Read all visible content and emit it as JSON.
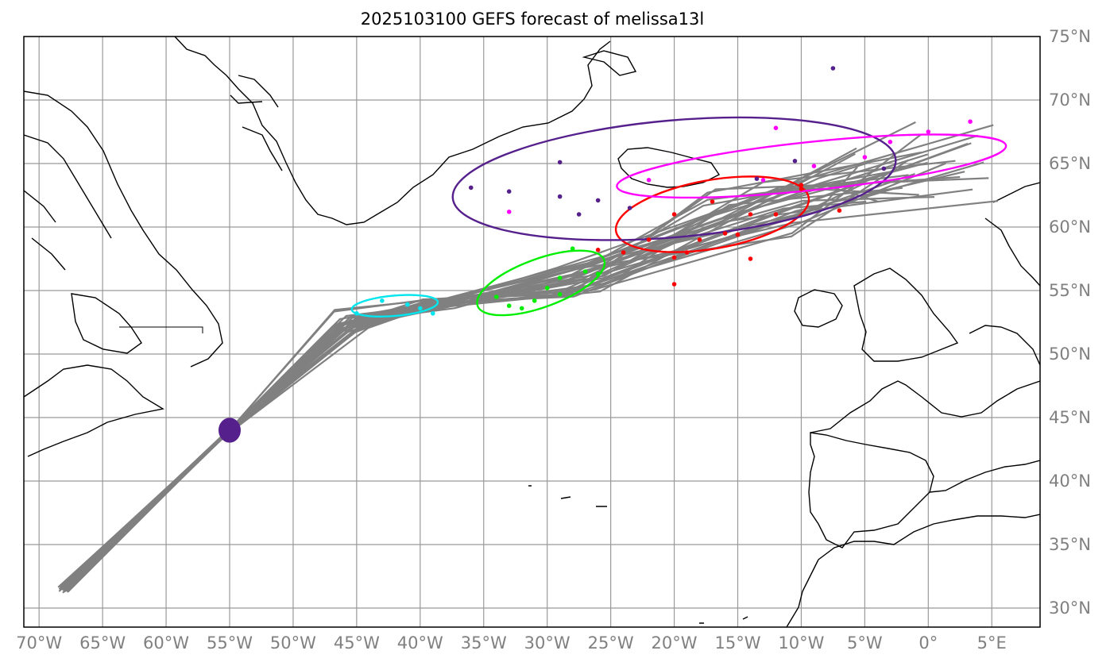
{
  "title": "2025103100 GEFS forecast of melissa13l",
  "axes": {
    "lon_ticks": [
      "70°W",
      "65°W",
      "60°W",
      "55°W",
      "50°W",
      "45°W",
      "40°W",
      "35°W",
      "30°W",
      "25°W",
      "20°W",
      "15°W",
      "10°W",
      "5°W",
      "0°",
      "5°E"
    ],
    "lat_ticks": [
      "75°N",
      "70°N",
      "65°N",
      "60°N",
      "55°N",
      "50°N",
      "45°N",
      "40°N",
      "35°N",
      "30°N"
    ],
    "lon_values": [
      -70,
      -65,
      -60,
      -55,
      -50,
      -45,
      -40,
      -35,
      -30,
      -25,
      -20,
      -15,
      -10,
      -5,
      0,
      5
    ],
    "lat_values": [
      75,
      70,
      65,
      60,
      55,
      50,
      45,
      40,
      35,
      30
    ],
    "lon_range": [
      -71.2,
      8.8
    ],
    "lat_range": [
      28.5,
      75.0
    ],
    "grid": true,
    "colors": {
      "grid": "#999999",
      "track": "#808080",
      "coast": "#000000",
      "tick_label": "#808080"
    }
  },
  "chart_data": {
    "type": "map-tracks",
    "ellipses": [
      {
        "color": "#55208c",
        "center": [
          -55.0,
          44.0
        ],
        "rx": 0.8,
        "ry": 0.9,
        "angle": 0,
        "fill": true
      },
      {
        "color": "#00e5ee",
        "center": [
          -42.0,
          53.8
        ],
        "rx": 3.4,
        "ry": 0.8,
        "angle": 5
      },
      {
        "color": "#00ee00",
        "center": [
          -30.5,
          55.6
        ],
        "rx": 5.3,
        "ry": 1.9,
        "angle": 20
      },
      {
        "color": "#ff0000",
        "center": [
          -17.0,
          61.0
        ],
        "rx": 7.7,
        "ry": 2.7,
        "angle": 10
      },
      {
        "color": "#55208c",
        "center": [
          -20.0,
          63.8
        ],
        "rx": 17.5,
        "ry": 4.6,
        "angle": 5
      },
      {
        "color": "#ff00ff",
        "center": [
          -9.2,
          64.8
        ],
        "rx": 15.4,
        "ry": 1.9,
        "angle": 6
      }
    ],
    "points": [
      {
        "color": "#ff0000",
        "coords": [
          [
            -20,
            61
          ],
          [
            -17,
            62
          ],
          [
            -14,
            61
          ],
          [
            -18,
            59
          ],
          [
            -16,
            59.5
          ],
          [
            -12,
            61
          ],
          [
            -10,
            63
          ],
          [
            -7,
            61.3
          ],
          [
            -22,
            59
          ],
          [
            -19,
            58
          ],
          [
            -24,
            58
          ],
          [
            -20,
            57.6
          ],
          [
            -15,
            59.4
          ],
          [
            -26,
            58.2
          ],
          [
            -14,
            57.5
          ],
          [
            -20,
            55.5
          ],
          [
            -10,
            63.3
          ]
        ]
      },
      {
        "color": "#00ee00",
        "coords": [
          [
            -34,
            54.5
          ],
          [
            -33,
            53.8
          ],
          [
            -31,
            54.2
          ],
          [
            -29,
            54.7
          ],
          [
            -27,
            56.5
          ],
          [
            -28,
            58.3
          ],
          [
            -32,
            53.6
          ],
          [
            -30,
            55.2
          ],
          [
            -26,
            56.3
          ],
          [
            -29,
            56
          ]
        ]
      },
      {
        "color": "#00e5ee",
        "coords": [
          [
            -45,
            53.2
          ],
          [
            -41,
            53.9
          ],
          [
            -39,
            53.2
          ],
          [
            -43,
            54.2
          ],
          [
            -40,
            53.6
          ]
        ]
      },
      {
        "color": "#ff00ff",
        "coords": [
          [
            -12,
            67.8
          ],
          [
            -33,
            61.2
          ],
          [
            -9,
            64.8
          ],
          [
            -5,
            65.5
          ],
          [
            -3,
            66.7
          ],
          [
            0,
            67.5
          ],
          [
            3.3,
            68.3
          ],
          [
            -13,
            63.7
          ],
          [
            -22,
            63.7
          ]
        ]
      },
      {
        "color": "#55208c",
        "coords": [
          [
            -36,
            63.1
          ],
          [
            -33,
            62.8
          ],
          [
            -29,
            62.4
          ],
          [
            -29,
            65.1
          ],
          [
            -26,
            62.1
          ],
          [
            -23.5,
            61.5
          ],
          [
            -27.5,
            61
          ],
          [
            -10.5,
            65.2
          ],
          [
            -7.5,
            72.5
          ],
          [
            -3.5,
            64.6
          ],
          [
            -13.5,
            63.8
          ]
        ]
      }
    ]
  }
}
